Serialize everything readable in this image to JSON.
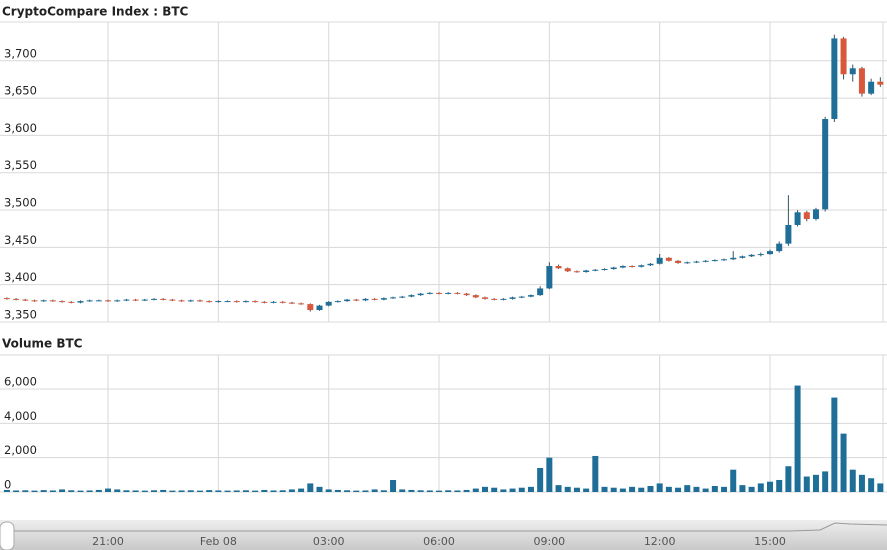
{
  "chart_data": [
    {
      "type": "candlestick",
      "title": "CryptoCompare Index : BTC",
      "up_color": "#1f6e97",
      "down_color": "#d9573a",
      "grid": true,
      "categories": [
        null,
        null,
        null,
        null,
        null,
        null,
        null,
        null,
        null,
        null,
        null,
        "21:00",
        null,
        null,
        null,
        null,
        null,
        null,
        null,
        null,
        null,
        null,
        null,
        "Feb 08",
        null,
        null,
        null,
        null,
        null,
        null,
        null,
        null,
        null,
        null,
        null,
        "03:00",
        null,
        null,
        null,
        null,
        null,
        null,
        null,
        null,
        null,
        null,
        null,
        "06:00",
        null,
        null,
        null,
        null,
        null,
        null,
        null,
        null,
        null,
        null,
        null,
        "09:00",
        null,
        null,
        null,
        null,
        null,
        null,
        null,
        null,
        null,
        null,
        null,
        "12:00",
        null,
        null,
        null,
        null,
        null,
        null,
        null,
        null,
        null,
        null,
        null,
        "15:00",
        null,
        null,
        null,
        null,
        null,
        null,
        null,
        null,
        null,
        null,
        null,
        null
      ],
      "open": [
        3382,
        3381,
        3380,
        3379,
        3378,
        3379,
        3378,
        3377,
        3376,
        3378,
        3379,
        3379,
        3378,
        3379,
        3380,
        3379,
        3380,
        3381,
        3380,
        3379,
        3378,
        3379,
        3378,
        3377,
        3378,
        3378,
        3377,
        3378,
        3377,
        3376,
        3377,
        3376,
        3375,
        3374,
        3366,
        3372,
        3377,
        3378,
        3380,
        3379,
        3381,
        3380,
        3382,
        3383,
        3384,
        3386,
        3388,
        3389,
        3388,
        3389,
        3388,
        3386,
        3383,
        3381,
        3380,
        3381,
        3383,
        3384,
        3386,
        3395,
        3425,
        3422,
        3418,
        3417,
        3419,
        3420,
        3421,
        3423,
        3425,
        3424,
        3426,
        3428,
        3436,
        3432,
        3429,
        3430,
        3431,
        3432,
        3433,
        3434,
        3436,
        3438,
        3440,
        3441,
        3445,
        3455,
        3480,
        3497,
        3488,
        3501,
        3622,
        3730,
        3682,
        3690,
        3656,
        3672
      ],
      "high": [
        3383,
        3382,
        3381,
        3380,
        3380,
        3380,
        3379,
        3378,
        3379,
        3380,
        3380,
        3380,
        3380,
        3381,
        3381,
        3381,
        3382,
        3382,
        3381,
        3380,
        3380,
        3380,
        3379,
        3379,
        3379,
        3379,
        3379,
        3379,
        3378,
        3378,
        3378,
        3377,
        3376,
        3375,
        3373,
        3378,
        3379,
        3381,
        3381,
        3382,
        3382,
        3383,
        3384,
        3385,
        3387,
        3389,
        3390,
        3390,
        3390,
        3390,
        3389,
        3387,
        3384,
        3382,
        3382,
        3384,
        3385,
        3387,
        3398,
        3430,
        3427,
        3423,
        3419,
        3420,
        3421,
        3422,
        3424,
        3426,
        3426,
        3427,
        3429,
        3441,
        3437,
        3433,
        3431,
        3432,
        3433,
        3434,
        3435,
        3445,
        3439,
        3441,
        3443,
        3447,
        3458,
        3520,
        3500,
        3499,
        3503,
        3625,
        3735,
        3732,
        3695,
        3692,
        3676,
        3678
      ],
      "low": [
        3380,
        3379,
        3378,
        3377,
        3377,
        3377,
        3376,
        3375,
        3375,
        3377,
        3378,
        3377,
        3377,
        3378,
        3378,
        3378,
        3379,
        3379,
        3378,
        3377,
        3377,
        3377,
        3376,
        3376,
        3377,
        3376,
        3376,
        3376,
        3375,
        3375,
        3375,
        3374,
        3373,
        3364,
        3365,
        3371,
        3376,
        3377,
        3378,
        3378,
        3379,
        3379,
        3381,
        3382,
        3383,
        3385,
        3387,
        3387,
        3387,
        3387,
        3385,
        3382,
        3380,
        3379,
        3379,
        3380,
        3382,
        3383,
        3385,
        3394,
        3421,
        3417,
        3416,
        3416,
        3418,
        3419,
        3420,
        3422,
        3423,
        3423,
        3425,
        3427,
        3431,
        3428,
        3428,
        3429,
        3430,
        3431,
        3432,
        3433,
        3435,
        3437,
        3438,
        3440,
        3443,
        3452,
        3478,
        3485,
        3486,
        3498,
        3618,
        3675,
        3672,
        3652,
        3654,
        3665
      ],
      "close": [
        3381,
        3380,
        3379,
        3378,
        3379,
        3378,
        3377,
        3376,
        3378,
        3379,
        3379,
        3378,
        3379,
        3380,
        3379,
        3380,
        3381,
        3380,
        3379,
        3378,
        3379,
        3378,
        3377,
        3378,
        3378,
        3377,
        3378,
        3377,
        3376,
        3377,
        3376,
        3375,
        3374,
        3366,
        3372,
        3377,
        3378,
        3380,
        3379,
        3381,
        3380,
        3382,
        3383,
        3384,
        3386,
        3388,
        3389,
        3388,
        3389,
        3388,
        3386,
        3383,
        3381,
        3380,
        3381,
        3383,
        3384,
        3386,
        3395,
        3425,
        3422,
        3418,
        3417,
        3419,
        3420,
        3421,
        3423,
        3425,
        3424,
        3426,
        3428,
        3436,
        3432,
        3429,
        3430,
        3431,
        3432,
        3433,
        3434,
        3436,
        3438,
        3440,
        3441,
        3445,
        3455,
        3480,
        3497,
        3488,
        3501,
        3622,
        3730,
        3682,
        3690,
        3656,
        3672,
        3668
      ],
      "ylim": [
        3350,
        3752
      ],
      "yticks": [
        {
          "value": 3350,
          "label": "3,350"
        },
        {
          "value": 3400,
          "label": "3,400"
        },
        {
          "value": 3450,
          "label": "3,450"
        },
        {
          "value": 3500,
          "label": "3,500"
        },
        {
          "value": 3550,
          "label": "3,550"
        },
        {
          "value": 3600,
          "label": "3,600"
        },
        {
          "value": 3650,
          "label": "3,650"
        },
        {
          "value": 3700,
          "label": "3,700"
        }
      ]
    },
    {
      "type": "bar",
      "title": "Volume BTC",
      "color": "#1f6e97",
      "grid": true,
      "values": [
        120,
        90,
        100,
        80,
        110,
        90,
        150,
        100,
        80,
        90,
        120,
        200,
        150,
        100,
        90,
        80,
        100,
        120,
        80,
        90,
        100,
        80,
        110,
        90,
        80,
        90,
        100,
        80,
        120,
        90,
        100,
        150,
        200,
        500,
        300,
        150,
        120,
        100,
        80,
        90,
        150,
        100,
        700,
        150,
        120,
        100,
        90,
        80,
        100,
        90,
        120,
        200,
        300,
        250,
        150,
        200,
        250,
        300,
        1400,
        2000,
        400,
        300,
        250,
        200,
        2100,
        300,
        250,
        200,
        300,
        250,
        350,
        500,
        300,
        250,
        400,
        300,
        200,
        350,
        300,
        1300,
        400,
        300,
        500,
        600,
        700,
        1500,
        6200,
        900,
        1000,
        1200,
        5500,
        3400,
        1300,
        1000,
        800,
        500
      ],
      "ylim": [
        0,
        7980
      ],
      "yticks": [
        0,
        {
          "value": 2000,
          "label": "2,000"
        },
        {
          "value": 4000,
          "label": "4,000"
        },
        {
          "value": 6000,
          "label": "6,000"
        }
      ]
    }
  ]
}
